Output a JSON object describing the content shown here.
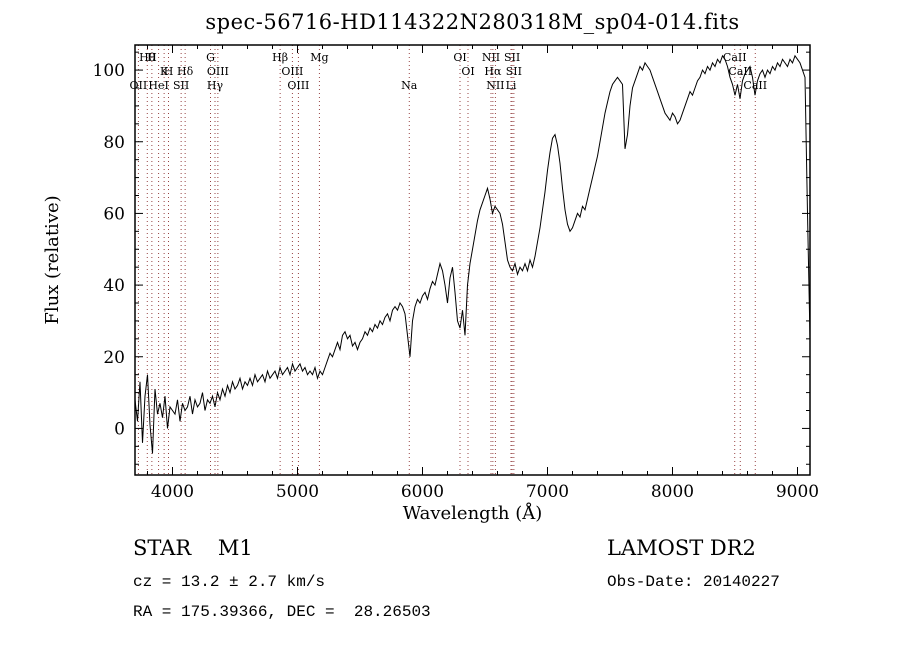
{
  "title": "spec-56716-HD114322N280318M_sp04-014.fits",
  "footer": {
    "object_type": "STAR    M1",
    "survey": "LAMOST DR2",
    "cz": "cz = 13.2 ± 2.7 km/s",
    "obs_date": "Obs-Date: 20140227",
    "ra_dec": "RA = 175.39366, DEC =  28.26503"
  },
  "chart_data": {
    "type": "line",
    "title": "spec-56716-HD114322N280318M_sp04-014.fits",
    "xlabel": "Wavelength (Å)",
    "ylabel": "Flux (relative)",
    "xlim": [
      3700,
      9100
    ],
    "ylim": [
      -13,
      107
    ],
    "xticks": [
      4000,
      5000,
      6000,
      7000,
      8000,
      9000
    ],
    "yticks": [
      0,
      20,
      40,
      60,
      80,
      100
    ],
    "x_minor_step": 200,
    "y_minor_step": 5,
    "grid": false,
    "legend": "none",
    "line_color": "#000000",
    "marker_color": "#8b2f2f",
    "spectrum": {
      "start": 3700,
      "step": 20,
      "flux": [
        8,
        2,
        13,
        -4,
        9,
        15,
        1,
        -7,
        11,
        4,
        7,
        3,
        9,
        0,
        6,
        5,
        4,
        8,
        2,
        7,
        5,
        6,
        9,
        4,
        8,
        6,
        7,
        10,
        5,
        8,
        7,
        9,
        6,
        10,
        8,
        11,
        9,
        12,
        10,
        13,
        11,
        12,
        14,
        11,
        13,
        12,
        14,
        12,
        15,
        13,
        14,
        15,
        13,
        16,
        14,
        15,
        16,
        14,
        17,
        15,
        16,
        17,
        15,
        18,
        16,
        17,
        18,
        16,
        17,
        15,
        16,
        15,
        17,
        14,
        16,
        15,
        17,
        19,
        21,
        20,
        22,
        24,
        22,
        26,
        27,
        25,
        26,
        23,
        24,
        22,
        24,
        25,
        27,
        26,
        28,
        27,
        29,
        28,
        30,
        29,
        31,
        32,
        30,
        33,
        34,
        33,
        35,
        34,
        32,
        26,
        20,
        30,
        34,
        36,
        35,
        37,
        38,
        36,
        39,
        41,
        40,
        43,
        46,
        44,
        40,
        35,
        42,
        45,
        38,
        30,
        28,
        33,
        26,
        40,
        46,
        50,
        54,
        58,
        61,
        63,
        65,
        67,
        64,
        60,
        62,
        61,
        60,
        57,
        52,
        47,
        45,
        44,
        46,
        43,
        45,
        44,
        46,
        44,
        47,
        45,
        48,
        52,
        56,
        61,
        66,
        72,
        77,
        81,
        82,
        79,
        74,
        67,
        61,
        57,
        55,
        56,
        58,
        60,
        59,
        62,
        61,
        64,
        67,
        70,
        73,
        76,
        80,
        84,
        88,
        91,
        94,
        96,
        97,
        98,
        97,
        96,
        78,
        82,
        90,
        95,
        97,
        99,
        101,
        100,
        102,
        101,
        100,
        98,
        96,
        94,
        92,
        90,
        88,
        87,
        86,
        88,
        87,
        85,
        86,
        88,
        90,
        92,
        94,
        93,
        95,
        97,
        98,
        100,
        99,
        101,
        100,
        102,
        101,
        103,
        102,
        104,
        103,
        101,
        98,
        96,
        93,
        96,
        92,
        97,
        99,
        100,
        101,
        98,
        93,
        97,
        99,
        100,
        98,
        100,
        99,
        101,
        100,
        102,
        101,
        103,
        102,
        101,
        103,
        102,
        104,
        103,
        102,
        100,
        98,
        60,
        25
      ]
    },
    "line_markers": [
      {
        "wl": 3798,
        "label": "Hθ",
        "row": 0
      },
      {
        "wl": 3835,
        "label": "H",
        "row": 0
      },
      {
        "wl": 4304,
        "label": "G",
        "row": 0
      },
      {
        "wl": 4861,
        "label": "Hβ",
        "row": 0
      },
      {
        "wl": 5175,
        "label": "Mg",
        "row": 0
      },
      {
        "wl": 6300,
        "label": "OI",
        "row": 0
      },
      {
        "wl": 6548,
        "label": "NII",
        "row": 0
      },
      {
        "wl": 6717,
        "label": "SII",
        "row": 0
      },
      {
        "wl": 8498,
        "label": "CaII",
        "row": 0
      },
      {
        "wl": 3933,
        "label": "K",
        "row": 1
      },
      {
        "wl": 3968,
        "label": "H",
        "row": 1
      },
      {
        "wl": 4101,
        "label": "Hδ",
        "row": 1
      },
      {
        "wl": 4363,
        "label": "OIII",
        "row": 1
      },
      {
        "wl": 4959,
        "label": "OIII",
        "row": 1
      },
      {
        "wl": 6364,
        "label": "OI",
        "row": 1
      },
      {
        "wl": 6563,
        "label": "Hα",
        "row": 1
      },
      {
        "wl": 6731,
        "label": "SII",
        "row": 1
      },
      {
        "wl": 8542,
        "label": "CaII",
        "row": 1
      },
      {
        "wl": 3727,
        "label": "OII",
        "row": 2
      },
      {
        "wl": 3889,
        "label": "HeI",
        "row": 2
      },
      {
        "wl": 4069,
        "label": "SII",
        "row": 2
      },
      {
        "wl": 4340,
        "label": "Hγ",
        "row": 2
      },
      {
        "wl": 5007,
        "label": "OIII",
        "row": 2
      },
      {
        "wl": 5894,
        "label": "Na",
        "row": 2
      },
      {
        "wl": 6583,
        "label": "NII",
        "row": 2
      },
      {
        "wl": 6708,
        "label": "Li",
        "row": 2
      },
      {
        "wl": 8662,
        "label": "CaII",
        "row": 2
      }
    ]
  }
}
